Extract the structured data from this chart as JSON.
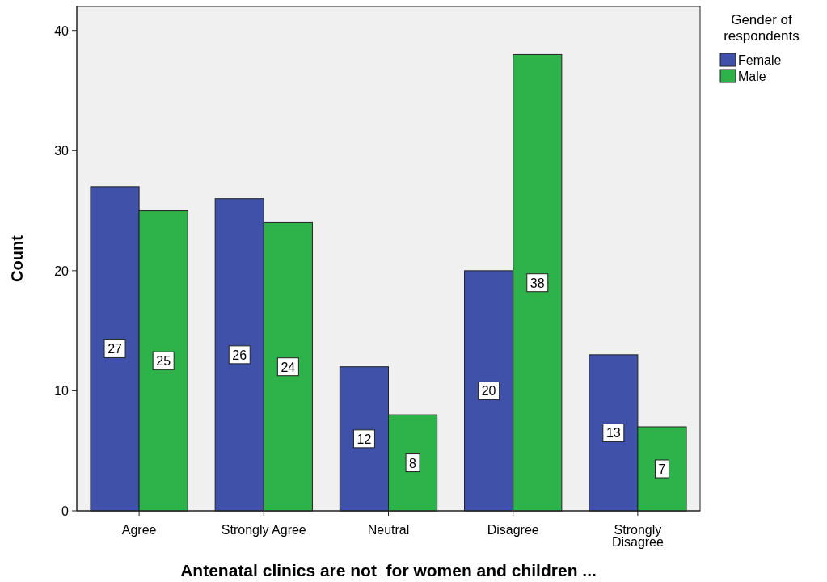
{
  "chart_data": {
    "type": "bar",
    "xlabel": "Antenatal clinics are not  for women and children ...",
    "ylabel": "Count",
    "legend_title": "Gender of respondents",
    "categories": [
      "Agree",
      "Strongly Agree",
      "Neutral",
      "Disagree",
      "Strongly Disagree"
    ],
    "series": [
      {
        "name": "Female",
        "color": "#3f51a8",
        "values": [
          27,
          26,
          12,
          20,
          13
        ]
      },
      {
        "name": "Male",
        "color": "#2eb34a",
        "values": [
          25,
          24,
          8,
          38,
          7
        ]
      }
    ],
    "ylim": [
      0,
      42
    ],
    "yticks": [
      0,
      10,
      20,
      30,
      40
    ],
    "data_labels": true,
    "legend": "top right",
    "grid": false
  }
}
